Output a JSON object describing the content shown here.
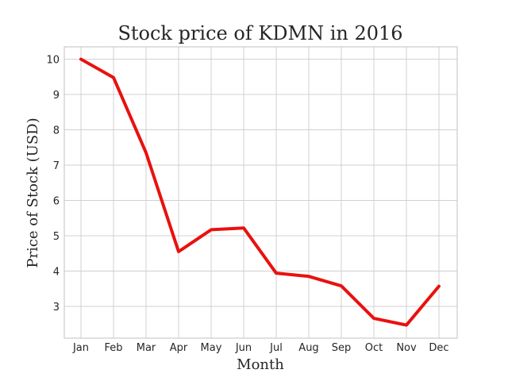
{
  "chart_data": {
    "type": "line",
    "title": "Stock price of KDMN in 2016",
    "xlabel": "Month",
    "ylabel": "Price of Stock (USD)",
    "categories": [
      "Jan",
      "Feb",
      "Mar",
      "Apr",
      "May",
      "Jun",
      "Jul",
      "Aug",
      "Sep",
      "Oct",
      "Nov",
      "Dec"
    ],
    "series": [
      {
        "values": [
          10.0,
          9.48,
          7.35,
          4.55,
          5.17,
          5.22,
          3.94,
          3.85,
          3.58,
          2.66,
          2.47,
          3.57
        ],
        "color": "#e8110f"
      }
    ],
    "yticks": [
      3,
      4,
      5,
      6,
      7,
      8,
      9,
      10
    ],
    "ylim": [
      2.1,
      10.35
    ],
    "grid": true,
    "legend": "none"
  }
}
